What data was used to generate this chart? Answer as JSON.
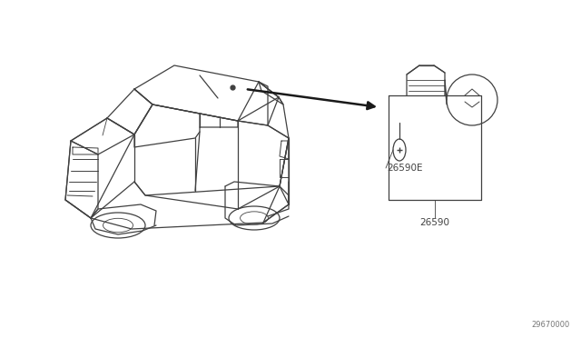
{
  "bg_color": "#ffffff",
  "line_color": "#404040",
  "text_color": "#404040",
  "part_label_1": "26590E",
  "part_label_2": "26590",
  "diagram_code": "29670000",
  "fig_width": 6.4,
  "fig_height": 3.72,
  "dpi": 100
}
